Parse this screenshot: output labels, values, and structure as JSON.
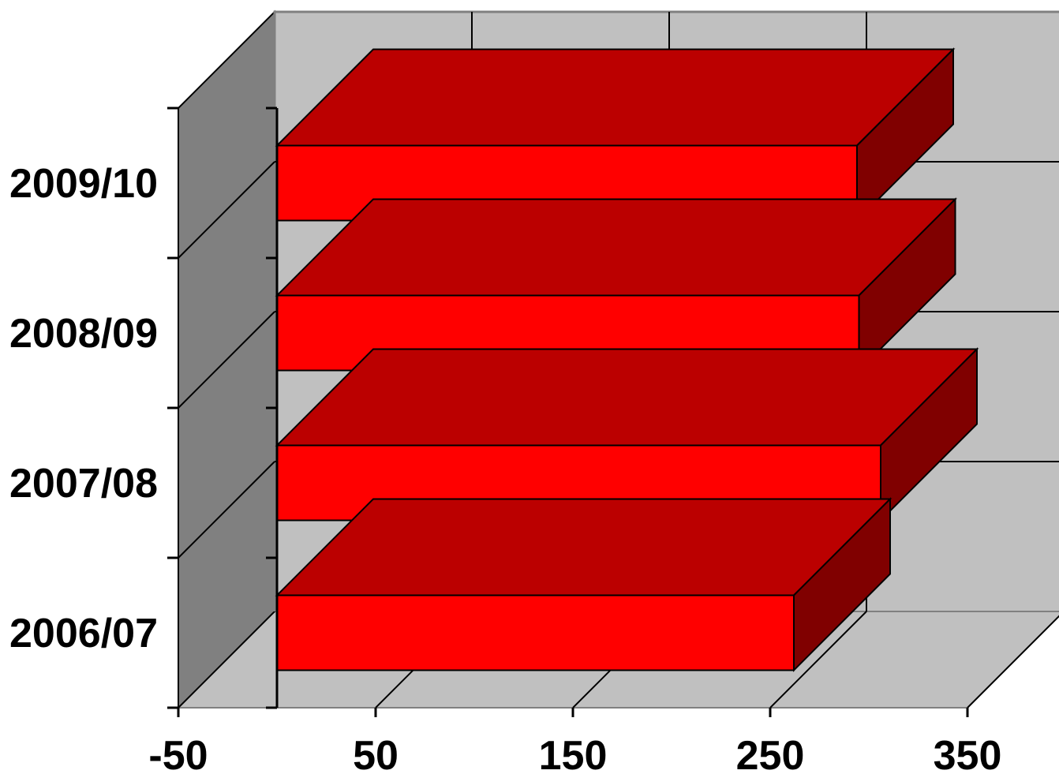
{
  "chart_data": {
    "type": "bar",
    "orientation": "horizontal",
    "three_d": true,
    "title": "",
    "xlabel": "",
    "ylabel": "",
    "categories": [
      "2006/07",
      "2007/08",
      "2008/09",
      "2009/10"
    ],
    "series": [
      {
        "values": [
          262,
          306,
          295,
          294
        ]
      }
    ],
    "xlim": [
      -50,
      350
    ],
    "xticks": [
      "-50",
      "50",
      "150",
      "250",
      "350"
    ],
    "grid": true,
    "legend": "none",
    "colors": {
      "bar_front": "#ff0000",
      "bar_top": "#bb0000",
      "bar_side": "#800000",
      "back_wall": "#c0c0c0",
      "side_wall": "#808080",
      "floor": "#c0c0c0"
    }
  }
}
